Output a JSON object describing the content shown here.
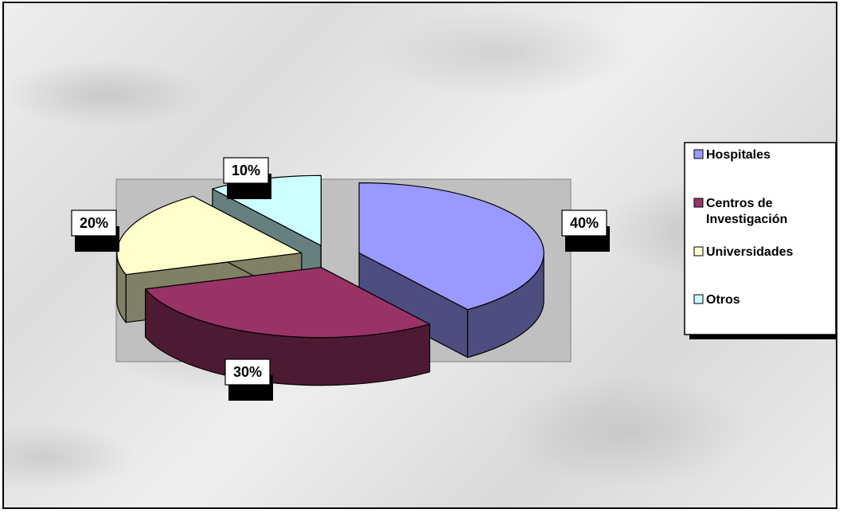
{
  "chart_data": {
    "type": "pie",
    "categories": [
      "Hospitales",
      "Centros de Investigación",
      "Universidades",
      "Otros"
    ],
    "values": [
      40,
      30,
      20,
      10
    ],
    "data_labels": [
      "40%",
      "30%",
      "20%",
      "10%"
    ],
    "style": "3d-exploded",
    "legend_position": "right",
    "legend_lines": [
      [
        "Hospitales"
      ],
      [
        "Centros de",
        "Investigación"
      ],
      [
        "Universidades"
      ],
      [
        "Otros"
      ]
    ],
    "colors": {
      "top": [
        "#9999ff",
        "#993366",
        "#ffffcc",
        "#ccffff"
      ],
      "side": [
        "#4d4d80",
        "#4d1a33",
        "#808066",
        "#668080"
      ],
      "plot_area": "#c0c0c0"
    }
  }
}
